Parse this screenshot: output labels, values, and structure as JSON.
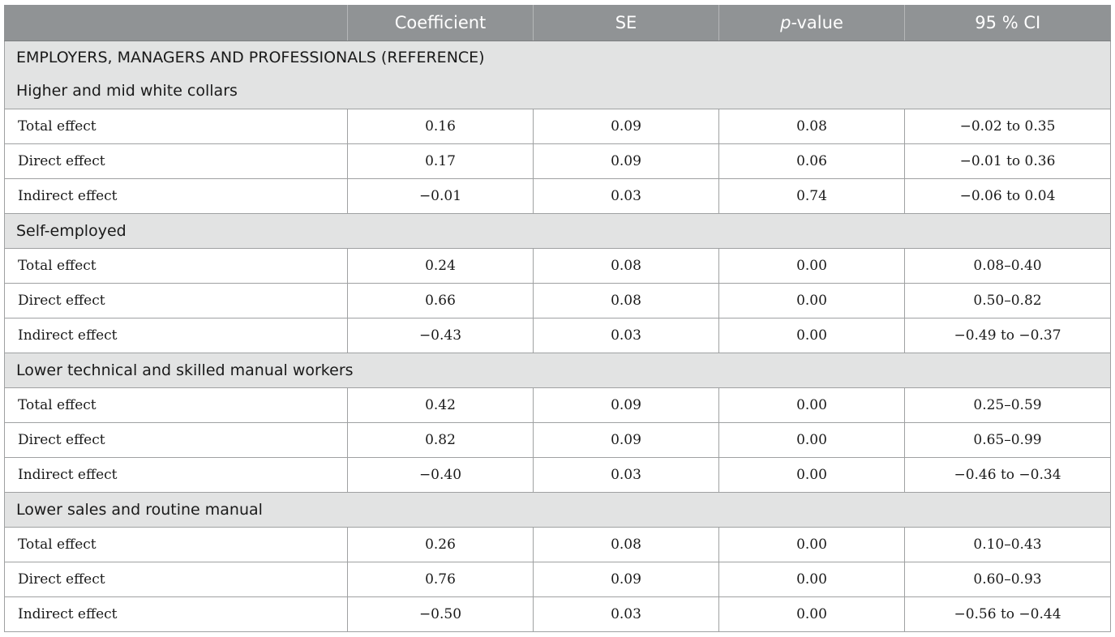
{
  "table": {
    "headers": [
      "",
      "Coefficient",
      "SE",
      "p",
      "-value",
      "95 % CI"
    ],
    "reference_label": "EMPLOYERS, MANAGERS AND PROFESSIONALS (REFERENCE)",
    "groups": [
      {
        "name": "Higher and mid white collars",
        "rows": [
          {
            "label": "Total effect",
            "coef": "0.16",
            "se": "0.09",
            "p": "0.08",
            "ci": "−0.02 to 0.35"
          },
          {
            "label": "Direct effect",
            "coef": "0.17",
            "se": "0.09",
            "p": "0.06",
            "ci": "−0.01 to 0.36"
          },
          {
            "label": "Indirect effect",
            "coef": "−0.01",
            "se": "0.03",
            "p": "0.74",
            "ci": "−0.06 to 0.04"
          }
        ]
      },
      {
        "name": "Self-employed",
        "rows": [
          {
            "label": "Total effect",
            "coef": "0.24",
            "se": "0.08",
            "p": "0.00",
            "ci": "0.08–0.40"
          },
          {
            "label": "Direct effect",
            "coef": "0.66",
            "se": "0.08",
            "p": "0.00",
            "ci": "0.50–0.82"
          },
          {
            "label": "Indirect effect",
            "coef": "−0.43",
            "se": "0.03",
            "p": "0.00",
            "ci": "−0.49 to −0.37"
          }
        ]
      },
      {
        "name": "Lower technical and skilled manual workers",
        "rows": [
          {
            "label": "Total effect",
            "coef": "0.42",
            "se": "0.09",
            "p": "0.00",
            "ci": "0.25–0.59"
          },
          {
            "label": "Direct effect",
            "coef": "0.82",
            "se": "0.09",
            "p": "0.00",
            "ci": "0.65–0.99"
          },
          {
            "label": "Indirect effect",
            "coef": "−0.40",
            "se": "0.03",
            "p": "0.00",
            "ci": "−0.46 to −0.34"
          }
        ]
      },
      {
        "name": "Lower sales and routine manual",
        "rows": [
          {
            "label": "Total effect",
            "coef": "0.26",
            "se": "0.08",
            "p": "0.00",
            "ci": "0.10–0.43"
          },
          {
            "label": "Direct effect",
            "coef": "0.76",
            "se": "0.09",
            "p": "0.00",
            "ci": "0.60–0.93"
          },
          {
            "label": "Indirect effect",
            "coef": "−0.50",
            "se": "0.03",
            "p": "0.00",
            "ci": "−0.56 to −0.44"
          }
        ]
      }
    ]
  }
}
